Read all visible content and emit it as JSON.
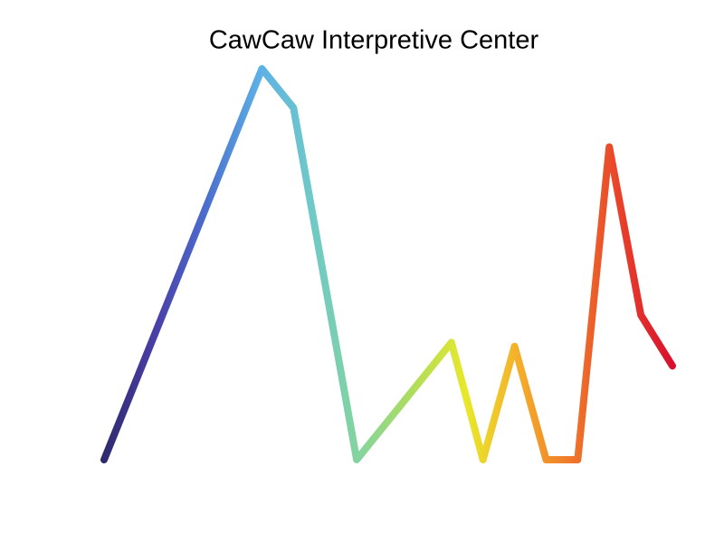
{
  "chart_data": {
    "type": "line",
    "title": "CawCaw Interpretive Center",
    "x": [
      0,
      5,
      6,
      8,
      11,
      12,
      13,
      14,
      15,
      16,
      17,
      18
    ],
    "values": [
      0,
      100,
      90,
      0,
      30,
      0,
      29,
      0,
      0,
      80,
      37,
      24
    ],
    "xlim": [
      0,
      18
    ],
    "ylim": [
      0,
      100
    ],
    "colors": [
      "#2e2a6e",
      "#4a3fa8",
      "#4c6fce",
      "#5cb0e6",
      "#6ec9c8",
      "#86d59a",
      "#b0dd5a",
      "#e8e82a",
      "#f4b02a",
      "#f07a2a",
      "#e8402a",
      "#d8102e"
    ]
  }
}
